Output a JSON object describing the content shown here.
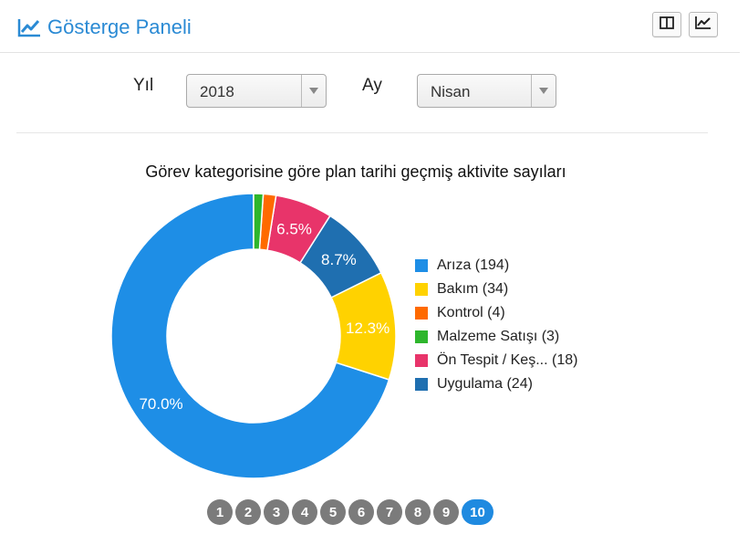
{
  "header": {
    "title": "Gösterge Paneli",
    "buttons": [
      {
        "name": "layout-toggle-button",
        "icon": "columns-icon"
      },
      {
        "name": "chart-view-button",
        "icon": "line-chart-icon"
      }
    ],
    "accent": "#2a8ad4"
  },
  "filters": {
    "year": {
      "label": "Yıl",
      "value": "2018"
    },
    "month": {
      "label": "Ay",
      "value": "Nisan"
    }
  },
  "chart_data": {
    "type": "pie",
    "donut": true,
    "title": "Görev kategorisine göre plan tarihi geçmiş aktivite sayıları",
    "legend_position": "right",
    "slices": [
      {
        "label": "Arıza",
        "value": 194,
        "legend": "Arıza (194)",
        "percent_label": "70.0%",
        "color": "#1e8ee6"
      },
      {
        "label": "Bakım",
        "value": 34,
        "legend": "Bakım (34)",
        "percent_label": "12.3%",
        "color": "#ffd200"
      },
      {
        "label": "Kontrol",
        "value": 4,
        "legend": "Kontrol (4)",
        "percent_label": "",
        "color": "#ff6a00"
      },
      {
        "label": "Malzeme Satışı",
        "value": 3,
        "legend": "Malzeme Satışı (3)",
        "percent_label": "",
        "color": "#2eb62c"
      },
      {
        "label": "Ön Tespit / Keş...",
        "value": 18,
        "legend": "Ön Tespit / Keş... (18)",
        "percent_label": "6.5%",
        "color": "#e8346a"
      },
      {
        "label": "Uygulama",
        "value": 24,
        "legend": "Uygulama (24)",
        "percent_label": "8.7%",
        "color": "#1f6fb0"
      }
    ],
    "draw_order": [
      "Arıza",
      "Bakım",
      "Uygulama",
      "Ön Tespit / Keş...",
      "Kontrol",
      "Malzeme Satışı"
    ]
  },
  "pagination": {
    "pages": [
      "1",
      "2",
      "3",
      "4",
      "5",
      "6",
      "7",
      "8",
      "9",
      "10"
    ],
    "active": "10"
  }
}
